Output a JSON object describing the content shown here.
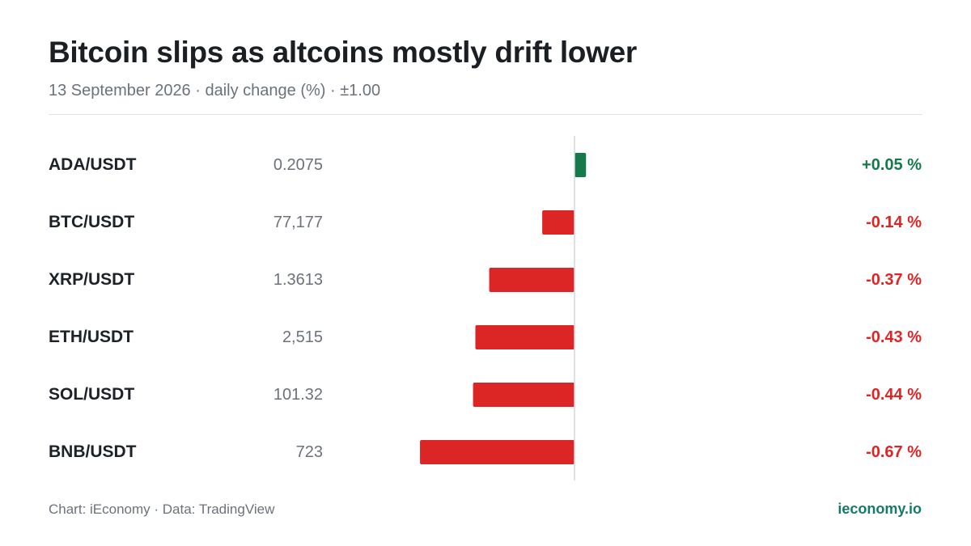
{
  "chart_data": {
    "type": "bar",
    "title": "Bitcoin slips as altcoins mostly drift lower",
    "subtitle": "13 September 2026 · daily change (%) · ±1.00",
    "xlim": [
      -1.0,
      1.0
    ],
    "rows": [
      {
        "pair": "ADA/USDT",
        "price": "0.2075",
        "change": 0.05,
        "change_label": "+0.05 %"
      },
      {
        "pair": "BTC/USDT",
        "price": "77,177",
        "change": -0.14,
        "change_label": "-0.14 %"
      },
      {
        "pair": "XRP/USDT",
        "price": "1.3613",
        "change": -0.37,
        "change_label": "-0.37 %"
      },
      {
        "pair": "ETH/USDT",
        "price": "2,515",
        "change": -0.43,
        "change_label": "-0.43 %"
      },
      {
        "pair": "SOL/USDT",
        "price": "101.32",
        "change": -0.44,
        "change_label": "-0.44 %"
      },
      {
        "pair": "BNB/USDT",
        "price": "723",
        "change": -0.67,
        "change_label": "-0.67 %"
      }
    ],
    "colors": {
      "positive": "#157a4a",
      "negative": "#dc2626",
      "axis": "#d4d7db"
    }
  },
  "footer": {
    "source": "Chart: iEconomy · Data: TradingView",
    "brand": "ieconomy.io"
  }
}
